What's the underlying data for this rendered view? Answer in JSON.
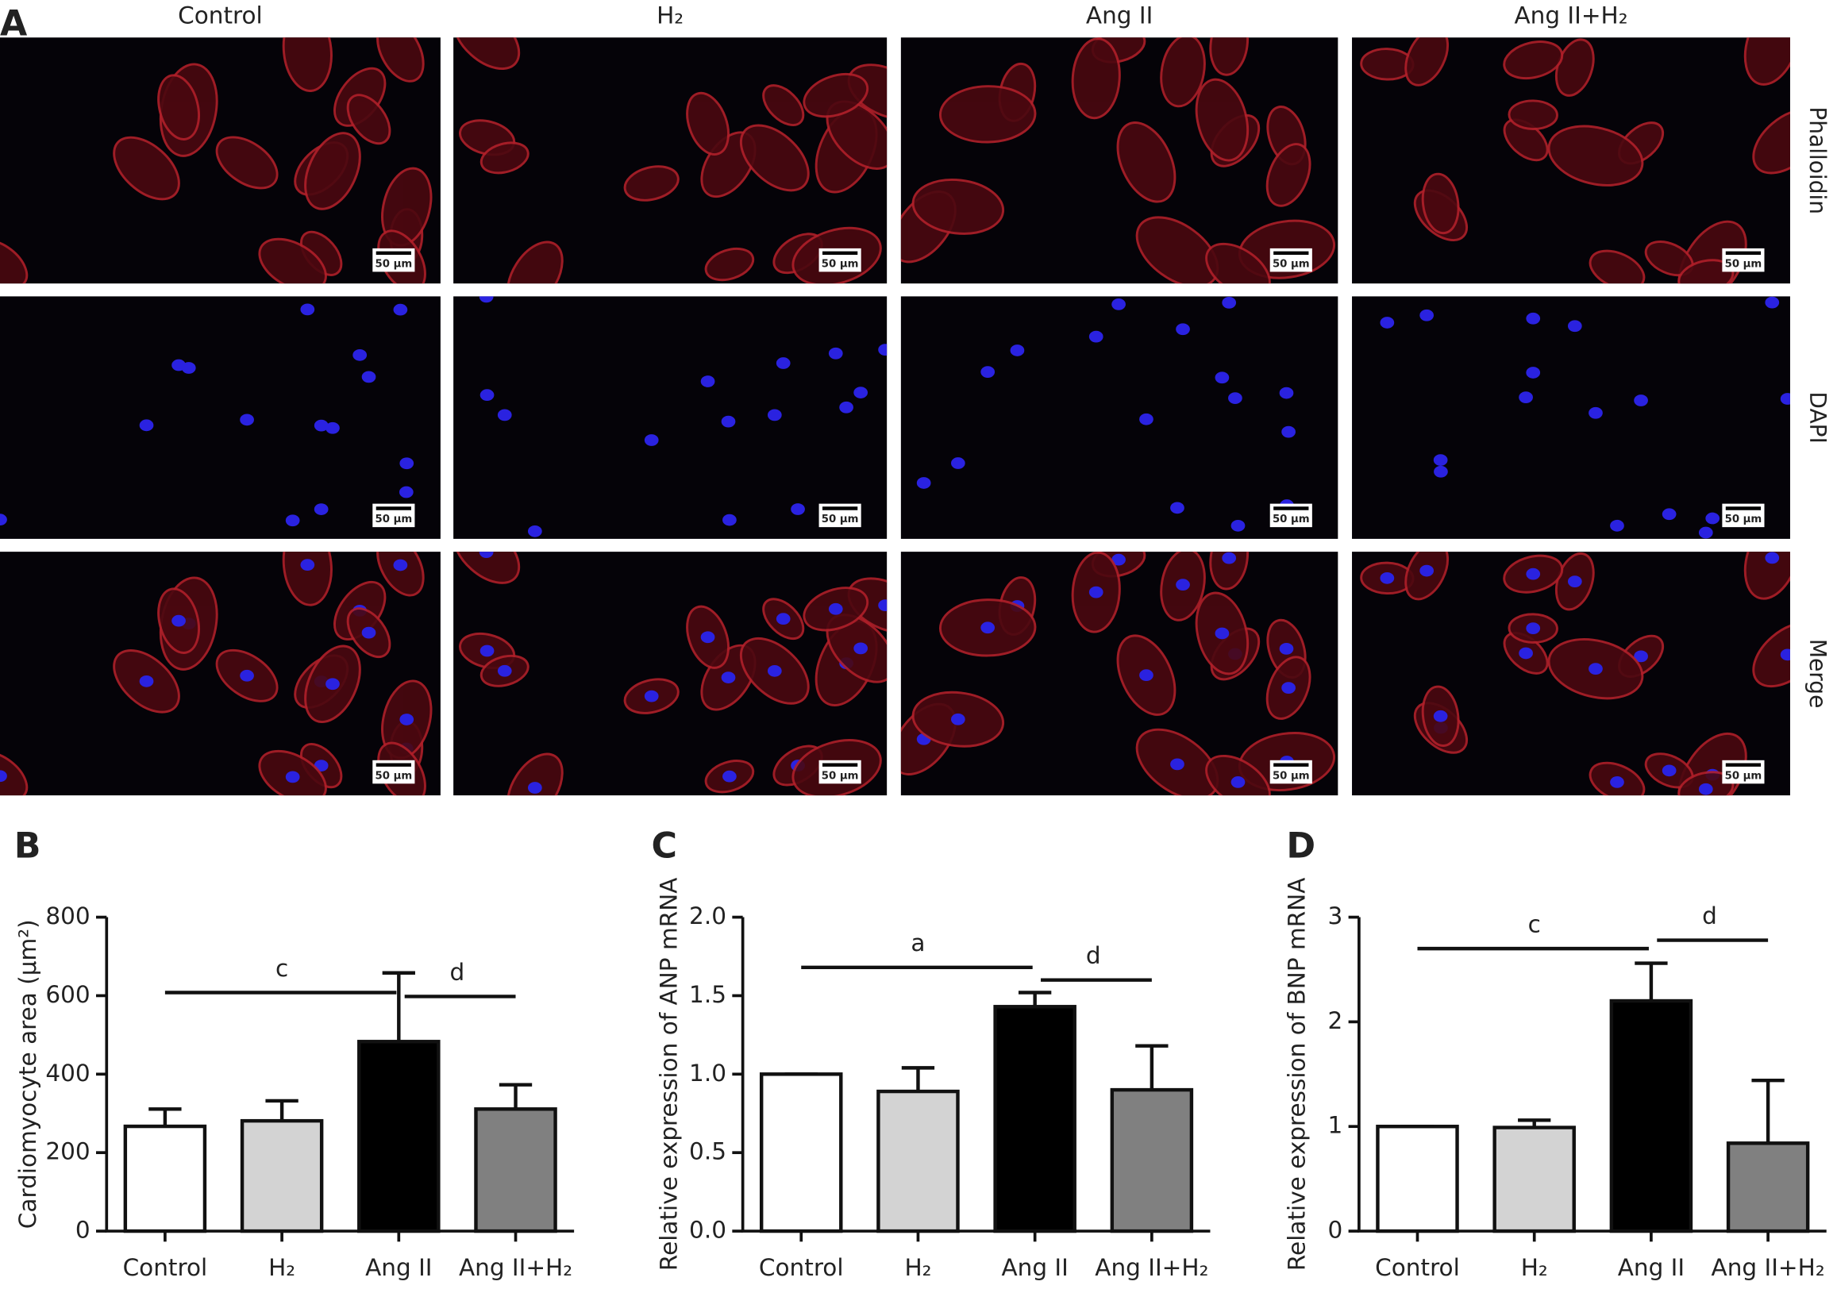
{
  "panel_a": {
    "label": "A",
    "columns": [
      "Control",
      "H₂",
      "Ang II",
      "Ang II+H₂"
    ],
    "rows": [
      "Phalloidin",
      "DAPI",
      "Merge"
    ],
    "scale_bar": "50 μm"
  },
  "chart_data": [
    {
      "type": "bar",
      "panel_label": "B",
      "ylabel": "Cardiomyocyte area (μm²)",
      "categories": [
        "Control",
        "H₂",
        "Ang II",
        "Ang II+H₂"
      ],
      "values": [
        267,
        281,
        483,
        311
      ],
      "errors": [
        44,
        51,
        175,
        62
      ],
      "colors": [
        "#ffffff",
        "#d3d3d3",
        "#000000",
        "#808080"
      ],
      "ylim": [
        0,
        800
      ],
      "yticks": [
        0,
        200,
        400,
        600,
        800
      ],
      "annotations": [
        {
          "text": "c",
          "from": 0,
          "to": 2,
          "y": 608
        },
        {
          "text": "d",
          "from": 2,
          "to": 3,
          "y": 598
        }
      ]
    },
    {
      "type": "bar",
      "panel_label": "C",
      "ylabel": "Relative expression of ANP mRNA",
      "categories": [
        "Control",
        "H₂",
        "Ang II",
        "Ang II+H₂"
      ],
      "values": [
        1.0,
        0.89,
        1.43,
        0.9
      ],
      "errors": [
        0,
        0.15,
        0.09,
        0.28
      ],
      "colors": [
        "#ffffff",
        "#d3d3d3",
        "#000000",
        "#808080"
      ],
      "ylim": [
        0,
        2.0
      ],
      "yticks": [
        {
          "value": 0,
          "label": "0.0"
        },
        {
          "value": 0.5,
          "label": "0.5"
        },
        {
          "value": 1,
          "label": "1.0"
        },
        {
          "value": 1.5,
          "label": "1.5"
        },
        {
          "value": 2,
          "label": "2.0"
        }
      ],
      "annotations": [
        {
          "text": "a",
          "from": 0,
          "to": 2,
          "y": 1.68
        },
        {
          "text": "d",
          "from": 2,
          "to": 3,
          "y": 1.6
        }
      ]
    },
    {
      "type": "bar",
      "panel_label": "D",
      "ylabel": "Relative expression of BNP mRNA",
      "categories": [
        "Control",
        "H₂",
        "Ang II",
        "Ang II+H₂"
      ],
      "values": [
        1.0,
        0.99,
        2.2,
        0.84
      ],
      "errors": [
        0,
        0.07,
        0.36,
        0.6
      ],
      "colors": [
        "#ffffff",
        "#d3d3d3",
        "#000000",
        "#808080"
      ],
      "ylim": [
        0,
        3
      ],
      "yticks": [
        0,
        1,
        2,
        3
      ],
      "annotations": [
        {
          "text": "c",
          "from": 0,
          "to": 2,
          "y": 2.7
        },
        {
          "text": "d",
          "from": 2,
          "to": 3,
          "y": 2.78
        }
      ]
    }
  ]
}
